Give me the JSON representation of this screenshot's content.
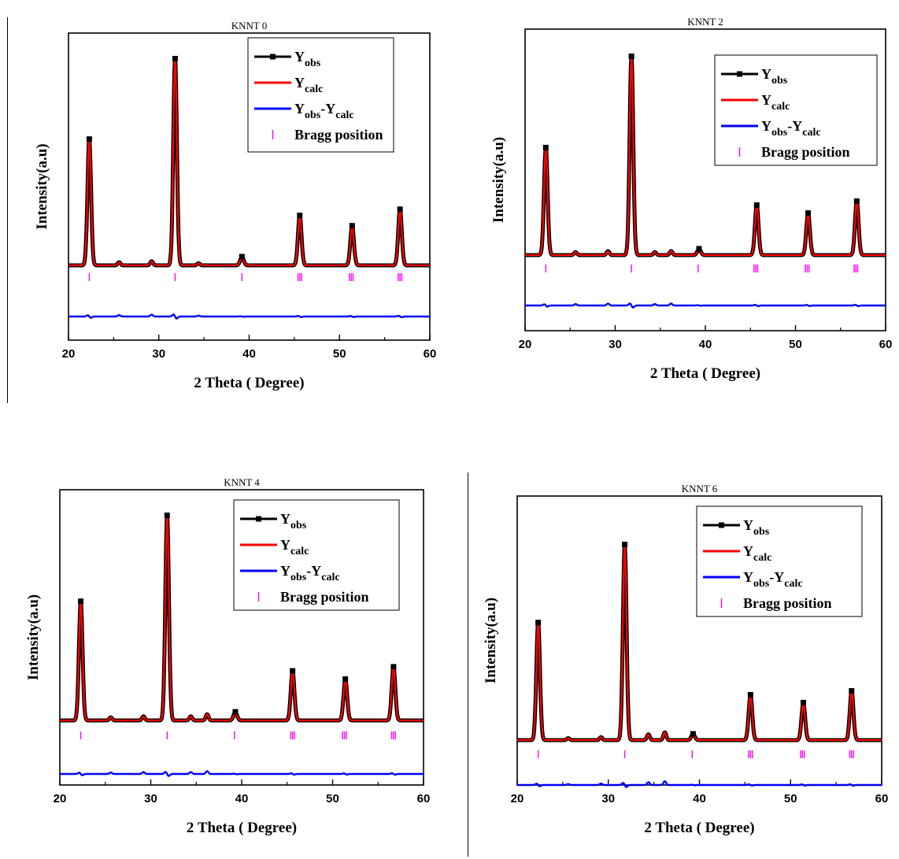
{
  "chart_data": [
    {
      "type": "line",
      "title": "KNNT 0",
      "xlabel": "2 Theta ( Degree)",
      "ylabel": "Intensity(a.u)",
      "xlim": [
        20,
        60
      ],
      "xticks": [
        "20",
        "30",
        "40",
        "50",
        "60"
      ],
      "legend_position": "top-right",
      "series": [
        {
          "name": "Y",
          "sub": "obs",
          "color": "#000000"
        },
        {
          "name": "Y",
          "sub": "calc",
          "color": "#ff0000"
        },
        {
          "name": "Y",
          "sub": "obs",
          "mid": "-Y",
          "sub2": "calc",
          "color": "#0000ff"
        },
        {
          "name": "Bragg position",
          "color": "#ff00ff"
        }
      ],
      "peaks": [
        {
          "x": 22.3,
          "h": 0.61
        },
        {
          "x": 31.8,
          "h": 1.0
        },
        {
          "x": 39.2,
          "h": 0.04
        },
        {
          "x": 45.6,
          "h": 0.24
        },
        {
          "x": 51.4,
          "h": 0.19
        },
        {
          "x": 56.7,
          "h": 0.27
        }
      ],
      "minor_peaks": [
        {
          "x": 25.6,
          "h": 0.015
        },
        {
          "x": 29.2,
          "h": 0.02
        },
        {
          "x": 34.4,
          "h": 0.01
        }
      ],
      "bragg_positions": [
        22.3,
        31.8,
        39.2,
        45.4,
        45.6,
        45.8,
        51.1,
        51.3,
        51.5,
        56.5,
        56.7,
        56.9
      ]
    },
    {
      "type": "line",
      "title": "KNNT 2",
      "xlabel": "2 Theta ( Degree)",
      "ylabel": "Intensity(a.u)",
      "xlim": [
        20,
        60
      ],
      "xticks": [
        "20",
        "30",
        "40",
        "50",
        "60"
      ],
      "legend_position": "top-right",
      "series": [
        {
          "name": "Y",
          "sub": "obs",
          "color": "#000000"
        },
        {
          "name": "Y",
          "sub": "calc",
          "color": "#ff0000"
        },
        {
          "name": "Y",
          "sub": "obs",
          "mid": "-Y",
          "sub2": "calc",
          "color": "#0000ff"
        },
        {
          "name": "Bragg position",
          "color": "#ff00ff"
        }
      ],
      "peaks": [
        {
          "x": 22.3,
          "h": 0.54
        },
        {
          "x": 31.8,
          "h": 1.0
        },
        {
          "x": 39.3,
          "h": 0.03
        },
        {
          "x": 45.7,
          "h": 0.25
        },
        {
          "x": 51.4,
          "h": 0.21
        },
        {
          "x": 56.8,
          "h": 0.27
        }
      ],
      "minor_peaks": [
        {
          "x": 25.6,
          "h": 0.015
        },
        {
          "x": 29.2,
          "h": 0.02
        },
        {
          "x": 34.4,
          "h": 0.015
        },
        {
          "x": 36.2,
          "h": 0.02
        }
      ],
      "bragg_positions": [
        22.3,
        31.8,
        39.2,
        45.4,
        45.6,
        45.8,
        51.1,
        51.3,
        51.5,
        56.5,
        56.7,
        56.9
      ]
    },
    {
      "type": "line",
      "title": "KNNT 4",
      "xlabel": "2 Theta ( Degree)",
      "ylabel": "Intensity(a.u)",
      "xlim": [
        20,
        60
      ],
      "xticks": [
        "20",
        "30",
        "40",
        "50",
        "60"
      ],
      "legend_position": "top-right",
      "series": [
        {
          "name": "Y",
          "sub": "obs",
          "color": "#000000"
        },
        {
          "name": "Y",
          "sub": "calc",
          "color": "#ff0000"
        },
        {
          "name": "Y",
          "sub": "obs",
          "mid": "-Y",
          "sub2": "calc",
          "color": "#0000ff"
        },
        {
          "name": "Bragg position",
          "color": "#ff00ff"
        }
      ],
      "peaks": [
        {
          "x": 22.3,
          "h": 0.58
        },
        {
          "x": 31.8,
          "h": 1.0
        },
        {
          "x": 39.3,
          "h": 0.04
        },
        {
          "x": 45.6,
          "h": 0.24
        },
        {
          "x": 51.4,
          "h": 0.2
        },
        {
          "x": 56.7,
          "h": 0.26
        }
      ],
      "minor_peaks": [
        {
          "x": 25.6,
          "h": 0.015
        },
        {
          "x": 29.2,
          "h": 0.02
        },
        {
          "x": 34.4,
          "h": 0.02
        },
        {
          "x": 36.2,
          "h": 0.03
        }
      ],
      "bragg_positions": [
        22.3,
        31.8,
        39.2,
        45.4,
        45.6,
        45.8,
        51.1,
        51.3,
        51.5,
        56.5,
        56.7,
        56.9
      ]
    },
    {
      "type": "line",
      "title": "KNNT 6",
      "xlabel": "2 Theta ( Degree)",
      "ylabel": "Intensity(a.u)",
      "xlim": [
        20,
        60
      ],
      "xticks": [
        "20",
        "30",
        "40",
        "50",
        "60"
      ],
      "legend_position": "top-right",
      "series": [
        {
          "name": "Y",
          "sub": "obs",
          "color": "#000000"
        },
        {
          "name": "Y",
          "sub": "calc",
          "color": "#ff0000"
        },
        {
          "name": "Y",
          "sub": "obs",
          "mid": "-Y",
          "sub2": "calc",
          "color": "#0000ff"
        },
        {
          "name": "Bragg position",
          "color": "#ff00ff"
        }
      ],
      "peaks": [
        {
          "x": 22.3,
          "h": 0.6
        },
        {
          "x": 31.8,
          "h": 1.0
        },
        {
          "x": 39.3,
          "h": 0.03
        },
        {
          "x": 45.6,
          "h": 0.23
        },
        {
          "x": 51.4,
          "h": 0.19
        },
        {
          "x": 56.7,
          "h": 0.25
        }
      ],
      "minor_peaks": [
        {
          "x": 25.6,
          "h": 0.01
        },
        {
          "x": 29.2,
          "h": 0.015
        },
        {
          "x": 34.4,
          "h": 0.03
        },
        {
          "x": 36.2,
          "h": 0.04
        }
      ],
      "bragg_positions": [
        22.3,
        31.8,
        39.2,
        45.4,
        45.6,
        45.8,
        51.1,
        51.3,
        51.5,
        56.5,
        56.7,
        56.9
      ]
    }
  ]
}
